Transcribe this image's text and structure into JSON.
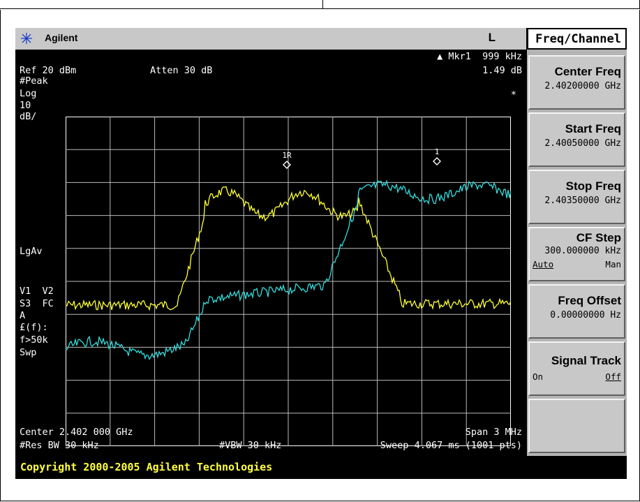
{
  "title_bar": {
    "brand": "Agilent",
    "status_flag": "L"
  },
  "header": {
    "marker_readout": "▲ Mkr1  999 kHz",
    "ref_level": "Ref 20 dBm",
    "attenuation": "Atten 30 dB",
    "marker_delta": "1.49 dB",
    "asterisk": "*"
  },
  "left_annotations": {
    "detector": "#Peak",
    "scale_type": "Log",
    "scale_value": "10",
    "scale_units": "dB/",
    "averaging": "LgAv",
    "trace_row1": "V1  V2",
    "trace_row2": "S3  FC",
    "trace_row3": "A",
    "cf_row": "£(f):",
    "filter_row": "f>50k",
    "sweep_row": "Swp"
  },
  "markers": [
    {
      "label": "1R"
    },
    {
      "label": "1"
    }
  ],
  "footer": {
    "center": "Center 2.402 000 GHz",
    "span": "Span 3 MHz",
    "res_bw": "#Res BW 30 kHz",
    "vbw": "#VBW 30 kHz",
    "sweep": "Sweep 4.067 ms (1001 pts)"
  },
  "copyright": "Copyright 2000-2005 Agilent Technologies",
  "menu": {
    "title": "Freq/Channel",
    "keys": [
      {
        "label": "Center Freq",
        "value": "2.40200000 GHz"
      },
      {
        "label": "Start Freq",
        "value": "2.40050000 GHz"
      },
      {
        "label": "Stop Freq",
        "value": "2.40350000 GHz"
      },
      {
        "label": "CF Step",
        "value": "300.000000 kHz",
        "option_a": "Auto",
        "option_b": "Man"
      },
      {
        "label": "Freq Offset",
        "value": "0.00000000  Hz"
      },
      {
        "label": "Signal Track",
        "option_a": "On",
        "option_b": "Off"
      },
      {
        "label": ""
      }
    ]
  },
  "colors": {
    "trace_yellow": "#ffff33",
    "trace_cyan": "#33dddd",
    "grid": "#ffffff",
    "copyright_text": "#ffff40"
  }
}
